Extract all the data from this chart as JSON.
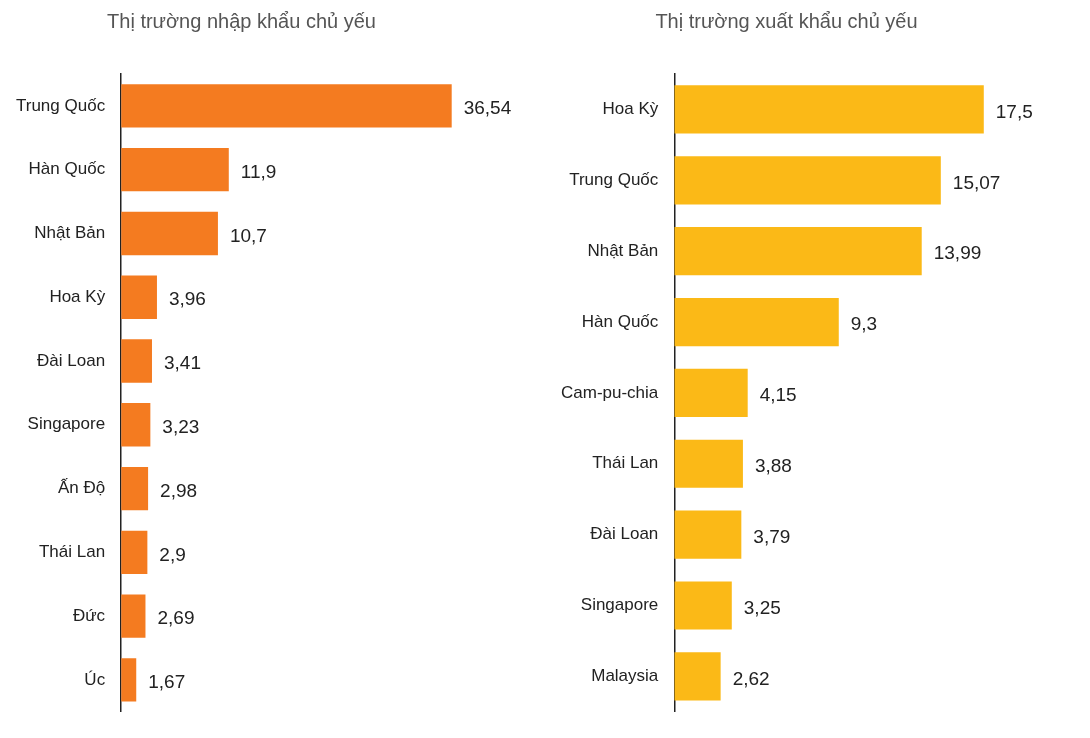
{
  "chart_data": [
    {
      "type": "bar",
      "orientation": "horizontal",
      "title": "Thị trường nhập khẩu chủ yếu",
      "categories": [
        "Trung Quốc",
        "Hàn Quốc",
        "Nhật Bản",
        "Hoa Kỳ",
        "Đài Loan",
        "Singapore",
        "Ấn Độ",
        "Thái Lan",
        "Đức",
        "Úc"
      ],
      "values": [
        36.54,
        11.9,
        10.7,
        3.96,
        3.41,
        3.23,
        2.98,
        2.9,
        2.69,
        1.67
      ],
      "value_labels": [
        "36,54",
        "11,9",
        "10,7",
        "3,96",
        "3,41",
        "3,23",
        "2,98",
        "2,9",
        "2,69",
        "1,67"
      ],
      "color": "#f47b20"
    },
    {
      "type": "bar",
      "orientation": "horizontal",
      "title": "Thị trường xuất khẩu chủ yếu",
      "categories": [
        "Hoa Kỳ",
        "Trung Quốc",
        "Nhật Bản",
        "Hàn Quốc",
        "Cam-pu-chia",
        "Thái Lan",
        "Đài Loan",
        "Singapore",
        "Malaysia"
      ],
      "values": [
        17.5,
        15.07,
        13.99,
        9.3,
        4.15,
        3.88,
        3.79,
        3.25,
        2.62
      ],
      "value_labels": [
        "17,5",
        "15,07",
        "13,99",
        "9,3",
        "4,15",
        "3,88",
        "3,79",
        "3,25",
        "2,62"
      ],
      "color": "#fbb917"
    }
  ]
}
